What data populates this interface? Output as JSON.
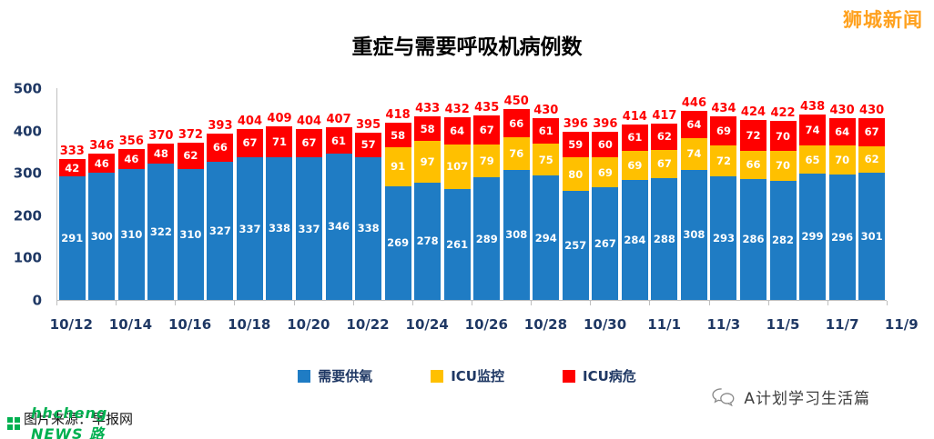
{
  "brand": {
    "text": "狮城新闻",
    "color": "#FFA11E"
  },
  "title": "重症与需要呼吸机病例数",
  "legend": [
    {
      "label": "需要供氧",
      "color": "#1F7CC4"
    },
    {
      "label": "ICU监控",
      "color": "#FFC000"
    },
    {
      "label": "ICU病危",
      "color": "#FF0000"
    }
  ],
  "footer": {
    "source_text": "图片来源：早报网",
    "green_watermark": "hhcheng NEWS 路",
    "account_name": "A计划学习生活篇"
  },
  "chart_data": {
    "type": "bar",
    "stacked": true,
    "title": "重症与需要呼吸机病例数",
    "x_tick_labels": [
      "10/12",
      "10/14",
      "10/16",
      "10/18",
      "10/20",
      "10/22",
      "10/24",
      "10/26",
      "10/28",
      "10/30",
      "11/1",
      "11/3",
      "11/5",
      "11/7",
      "11/9"
    ],
    "categories_per_tick": 2,
    "ylim": [
      0,
      500
    ],
    "yticks": [
      0,
      100,
      200,
      300,
      400,
      500
    ],
    "grid": false,
    "legend_position": "bottom",
    "axis_label_color": "#1F3864",
    "total_label_color": "#FF0000",
    "series": [
      {
        "name": "需要供氧",
        "color": "#1F7CC4",
        "values": [
          291,
          300,
          310,
          322,
          310,
          327,
          337,
          338,
          337,
          346,
          338,
          269,
          278,
          261,
          289,
          308,
          294,
          257,
          267,
          284,
          288,
          308,
          293,
          286,
          282,
          299,
          296,
          301
        ]
      },
      {
        "name": "ICU监控",
        "color": "#FFC000",
        "values": [
          0,
          0,
          0,
          0,
          0,
          0,
          0,
          0,
          0,
          0,
          0,
          91,
          97,
          107,
          79,
          76,
          75,
          80,
          69,
          69,
          67,
          74,
          72,
          66,
          70,
          65,
          70,
          62
        ]
      },
      {
        "name": "ICU病危",
        "color": "#FF0000",
        "values": [
          42,
          46,
          46,
          48,
          62,
          66,
          67,
          71,
          67,
          61,
          57,
          58,
          58,
          64,
          67,
          66,
          61,
          59,
          60,
          61,
          62,
          64,
          69,
          72,
          70,
          74,
          64,
          67
        ]
      }
    ],
    "totals": [
      333,
      346,
      356,
      370,
      372,
      393,
      404,
      409,
      404,
      407,
      395,
      418,
      433,
      432,
      435,
      450,
      430,
      396,
      396,
      414,
      417,
      446,
      434,
      424,
      422,
      438,
      430,
      430
    ]
  }
}
